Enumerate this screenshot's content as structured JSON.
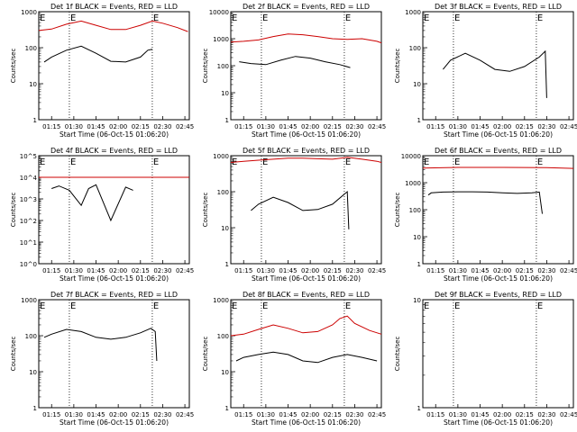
{
  "xlabel": "Start Time (06-Oct-15 01:06:20)",
  "ylabel": "Counts/sec",
  "x_ticks": [
    "01:15",
    "01:30",
    "01:45",
    "02:00",
    "02:15",
    "02:30",
    "02:45"
  ],
  "x_range": [
    "01:06:20",
    "02:48:00"
  ],
  "marker_label": "E",
  "markers_at": [
    "01:06:20",
    "01:27:00",
    "02:23:00"
  ],
  "colors": {
    "events": "#000000",
    "lld": "#cc0000",
    "axes": "#000000"
  },
  "chart_data": [
    {
      "type": "line",
      "title": "Det 1f BLACK = Events, RED = LLD",
      "scale": "log",
      "ylim": [
        1,
        1000
      ],
      "y_tick_labels": [
        "1",
        "10",
        "100",
        "1000"
      ],
      "y_ticks": [
        1,
        10,
        100,
        1000
      ],
      "series": [
        {
          "name": "Events",
          "color": "black",
          "x": [
            "01:10",
            "01:15",
            "01:25",
            "01:35",
            "01:45",
            "01:55",
            "02:05",
            "02:15",
            "02:20",
            "02:23"
          ],
          "y": [
            40,
            55,
            85,
            110,
            70,
            42,
            40,
            55,
            85,
            90
          ]
        },
        {
          "name": "LLD",
          "color": "red",
          "x": [
            "01:06:20",
            "01:15",
            "01:25",
            "01:35",
            "01:45",
            "01:55",
            "02:05",
            "02:15",
            "02:23",
            "02:30",
            "02:40",
            "02:47"
          ],
          "y": [
            300,
            330,
            450,
            550,
            420,
            320,
            320,
            420,
            550,
            480,
            360,
            280
          ]
        }
      ]
    },
    {
      "type": "line",
      "title": "Det 2f BLACK = Events, RED = LLD",
      "scale": "log",
      "ylim": [
        1,
        10000
      ],
      "y_tick_labels": [
        "1",
        "10",
        "100",
        "1000",
        "10000"
      ],
      "y_ticks": [
        1,
        10,
        100,
        1000,
        10000
      ],
      "series": [
        {
          "name": "Events",
          "color": "black",
          "x": [
            "01:12",
            "01:20",
            "01:30",
            "01:40",
            "01:50",
            "02:00",
            "02:10",
            "02:20",
            "02:27"
          ],
          "y": [
            140,
            120,
            110,
            160,
            220,
            190,
            140,
            110,
            85
          ]
        },
        {
          "name": "LLD",
          "color": "red",
          "x": [
            "01:06:20",
            "01:15",
            "01:25",
            "01:35",
            "01:45",
            "01:55",
            "02:05",
            "02:15",
            "02:25",
            "02:35",
            "02:45",
            "02:48"
          ],
          "y": [
            750,
            800,
            900,
            1200,
            1500,
            1400,
            1200,
            1000,
            950,
            1000,
            800,
            700
          ]
        }
      ]
    },
    {
      "type": "line",
      "title": "Det 3f BLACK = Events, RED = LLD",
      "scale": "log",
      "ylim": [
        1,
        1000
      ],
      "y_tick_labels": [
        "1",
        "10",
        "100",
        "1000"
      ],
      "y_ticks": [
        1,
        10,
        100,
        1000
      ],
      "series": [
        {
          "name": "Events",
          "color": "black",
          "x": [
            "01:20",
            "01:25",
            "01:35",
            "01:45",
            "01:55",
            "02:05",
            "02:15",
            "02:25",
            "02:29",
            "02:30"
          ],
          "y": [
            25,
            45,
            70,
            45,
            25,
            22,
            30,
            55,
            80,
            4
          ]
        }
      ]
    },
    {
      "type": "line",
      "title": "Det 4f BLACK = Events, RED = LLD",
      "scale": "log",
      "ylim": [
        1,
        100000
      ],
      "y_tick_labels": [
        "10^0",
        "10^1",
        "10^2",
        "10^3",
        "10^4",
        "10^5"
      ],
      "y_ticks": [
        1,
        10,
        100,
        1000,
        10000,
        100000
      ],
      "series": [
        {
          "name": "Events",
          "color": "black",
          "x": [
            "01:15",
            "01:20",
            "01:27",
            "01:35",
            "01:40",
            "01:45",
            "01:55",
            "02:05",
            "02:10"
          ],
          "y": [
            3000,
            4000,
            2500,
            500,
            3000,
            4500,
            100,
            3500,
            2500
          ]
        },
        {
          "name": "LLD",
          "color": "red",
          "x": [
            "01:06:20",
            "02:48"
          ],
          "y": [
            10000,
            10000
          ]
        }
      ]
    },
    {
      "type": "line",
      "title": "Det 5f BLACK = Events, RED = LLD",
      "scale": "log",
      "ylim": [
        1,
        1000
      ],
      "y_tick_labels": [
        "1",
        "10",
        "100",
        "1000"
      ],
      "y_ticks": [
        1,
        10,
        100,
        1000
      ],
      "series": [
        {
          "name": "Events",
          "color": "black",
          "x": [
            "01:20",
            "01:25",
            "01:35",
            "01:45",
            "01:55",
            "02:05",
            "02:15",
            "02:23",
            "02:25",
            "02:26"
          ],
          "y": [
            30,
            45,
            70,
            50,
            30,
            32,
            45,
            85,
            100,
            9
          ]
        },
        {
          "name": "LLD",
          "color": "red",
          "x": [
            "01:06:20",
            "01:15",
            "01:25",
            "01:35",
            "01:45",
            "01:55",
            "02:05",
            "02:15",
            "02:25",
            "02:35",
            "02:45",
            "02:48"
          ],
          "y": [
            650,
            700,
            750,
            800,
            850,
            850,
            820,
            800,
            900,
            800,
            700,
            650
          ]
        }
      ]
    },
    {
      "type": "line",
      "title": "Det 6f BLACK = Events, RED = LLD",
      "scale": "log",
      "ylim": [
        1,
        10000
      ],
      "y_tick_labels": [
        "1",
        "10",
        "100",
        "1000",
        "10000"
      ],
      "y_ticks": [
        1,
        10,
        100,
        1000,
        10000
      ],
      "series": [
        {
          "name": "Events",
          "color": "black",
          "x": [
            "01:10",
            "01:12",
            "01:20",
            "01:30",
            "01:40",
            "01:50",
            "02:00",
            "02:10",
            "02:20",
            "02:25",
            "02:27"
          ],
          "y": [
            350,
            420,
            450,
            460,
            460,
            450,
            420,
            400,
            420,
            450,
            70
          ]
        },
        {
          "name": "LLD",
          "color": "red",
          "x": [
            "01:06:20",
            "01:30",
            "02:00",
            "02:30",
            "02:48"
          ],
          "y": [
            3500,
            3700,
            3700,
            3600,
            3400
          ]
        }
      ]
    },
    {
      "type": "line",
      "title": "Det 7f BLACK = Events, RED = LLD",
      "scale": "log",
      "ylim": [
        1,
        1000
      ],
      "y_tick_labels": [
        "1",
        "10",
        "100",
        "1000"
      ],
      "y_ticks": [
        1,
        10,
        100,
        1000
      ],
      "series": [
        {
          "name": "Events",
          "color": "black",
          "x": [
            "01:10",
            "01:15",
            "01:25",
            "01:35",
            "01:45",
            "01:55",
            "02:05",
            "02:15",
            "02:22",
            "02:25",
            "02:26"
          ],
          "y": [
            90,
            110,
            150,
            130,
            90,
            80,
            90,
            120,
            160,
            130,
            20
          ]
        }
      ]
    },
    {
      "type": "line",
      "title": "Det 8f BLACK = Events, RED = LLD",
      "scale": "log",
      "ylim": [
        1,
        1000
      ],
      "y_tick_labels": [
        "1",
        "10",
        "100",
        "1000"
      ],
      "y_ticks": [
        1,
        10,
        100,
        1000
      ],
      "series": [
        {
          "name": "Events",
          "color": "black",
          "x": [
            "01:10",
            "01:15",
            "01:25",
            "01:35",
            "01:45",
            "01:55",
            "02:05",
            "02:15",
            "02:25",
            "02:35",
            "02:45"
          ],
          "y": [
            20,
            25,
            30,
            35,
            30,
            20,
            18,
            25,
            30,
            25,
            20
          ]
        },
        {
          "name": "LLD",
          "color": "red",
          "x": [
            "01:06:20",
            "01:15",
            "01:25",
            "01:35",
            "01:45",
            "01:55",
            "02:05",
            "02:15",
            "02:20",
            "02:25",
            "02:30",
            "02:40",
            "02:48"
          ],
          "y": [
            100,
            110,
            150,
            200,
            160,
            120,
            130,
            200,
            300,
            350,
            220,
            140,
            110
          ]
        }
      ]
    },
    {
      "type": "line",
      "title": "Det 9f BLACK = Events, RED = LLD",
      "scale": "log",
      "ylim": [
        1,
        10
      ],
      "y_tick_labels": [
        "1",
        "10"
      ],
      "y_ticks": [
        1,
        10
      ],
      "series": []
    }
  ]
}
